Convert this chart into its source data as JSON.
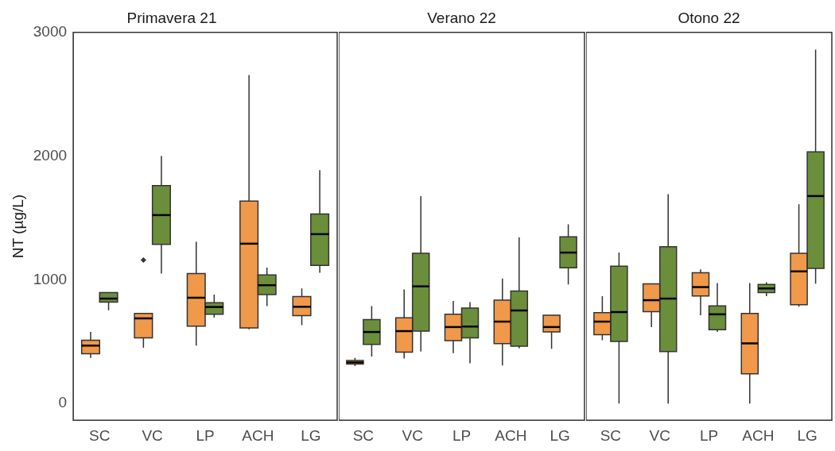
{
  "chart_data": [
    {
      "type": "box",
      "title": "Primavera 21",
      "ylabel": "NT (µg/L)",
      "categories": [
        "SC",
        "VC",
        "LP",
        "ACH",
        "LG"
      ],
      "ylim": [
        -135,
        3000
      ],
      "yticks": [
        0,
        1000,
        2000,
        3000
      ],
      "grid": false,
      "legend": false,
      "series": [
        {
          "color": "#f0994a",
          "boxes": [
            {
              "low": 369,
              "q1": 402,
              "median": 468,
              "q3": 512,
              "high": 578
            },
            {
              "low": 451,
              "q1": 530,
              "median": 688,
              "q3": 728,
              "high": 728,
              "outliers": [
                1160
              ]
            },
            {
              "low": 468,
              "q1": 626,
              "median": 855,
              "q3": 1051,
              "high": 1308
            },
            {
              "low": 600,
              "q1": 611,
              "median": 1292,
              "q3": 1637,
              "high": 2655
            },
            {
              "low": 633,
              "q1": 710,
              "median": 782,
              "q3": 864,
              "high": 930
            }
          ]
        },
        {
          "color": "#6b8e3a",
          "boxes": [
            {
              "low": 754,
              "q1": 820,
              "median": 848,
              "q3": 897,
              "high": 897
            },
            {
              "low": 1051,
              "q1": 1286,
              "median": 1523,
              "q3": 1761,
              "high": 2000
            },
            {
              "low": 695,
              "q1": 721,
              "median": 780,
              "q3": 815,
              "high": 881
            },
            {
              "low": 787,
              "q1": 881,
              "median": 956,
              "q3": 1040,
              "high": 1099
            },
            {
              "low": 1057,
              "q1": 1117,
              "median": 1369,
              "q3": 1532,
              "high": 1886
            }
          ]
        }
      ]
    },
    {
      "type": "box",
      "title": "Verano 22",
      "categories": [
        "SC",
        "VC",
        "LP",
        "ACH",
        "LG"
      ],
      "ylim": [
        -135,
        3000
      ],
      "yticks": [
        0,
        1000,
        2000,
        3000
      ],
      "tick_labels": "x",
      "grid": false,
      "legend": false,
      "series": [
        {
          "color": "#f0994a",
          "boxes": [
            {
              "low": 303,
              "q1": 319,
              "median": 332,
              "q3": 347,
              "high": 369
            },
            {
              "low": 363,
              "q1": 415,
              "median": 585,
              "q3": 692,
              "high": 923
            },
            {
              "low": 407,
              "q1": 508,
              "median": 618,
              "q3": 721,
              "high": 829
            },
            {
              "low": 308,
              "q1": 484,
              "median": 662,
              "q3": 835,
              "high": 1011
            },
            {
              "low": 442,
              "q1": 578,
              "median": 618,
              "q3": 714,
              "high": 714
            }
          ]
        },
        {
          "color": "#6b8e3a",
          "boxes": [
            {
              "low": 380,
              "q1": 477,
              "median": 578,
              "q3": 679,
              "high": 787
            },
            {
              "low": 420,
              "q1": 585,
              "median": 947,
              "q3": 1215,
              "high": 1677
            },
            {
              "low": 325,
              "q1": 530,
              "median": 622,
              "q3": 771,
              "high": 820
            },
            {
              "low": 446,
              "q1": 464,
              "median": 752,
              "q3": 910,
              "high": 1343
            },
            {
              "low": 963,
              "q1": 1097,
              "median": 1220,
              "q3": 1347,
              "high": 1448
            }
          ]
        }
      ]
    },
    {
      "type": "box",
      "title": "Otono 22",
      "categories": [
        "SC",
        "VC",
        "LP",
        "ACH",
        "LG"
      ],
      "ylim": [
        -135,
        3000
      ],
      "yticks": [
        0,
        1000,
        2000,
        3000
      ],
      "tick_labels": "x",
      "grid": false,
      "legend": false,
      "series": [
        {
          "color": "#f0994a",
          "boxes": [
            {
              "low": 512,
              "q1": 556,
              "median": 662,
              "q3": 734,
              "high": 868
            },
            {
              "low": 618,
              "q1": 743,
              "median": 835,
              "q3": 967,
              "high": 967
            },
            {
              "low": 714,
              "q1": 870,
              "median": 941,
              "q3": 1057,
              "high": 1084
            },
            {
              "low": 0,
              "q1": 240,
              "median": 486,
              "q3": 728,
              "high": 974
            },
            {
              "low": 782,
              "q1": 798,
              "median": 1068,
              "q3": 1215,
              "high": 1611
            }
          ]
        },
        {
          "color": "#6b8e3a",
          "boxes": [
            {
              "low": 0,
              "q1": 501,
              "median": 739,
              "q3": 1110,
              "high": 1220
            },
            {
              "low": 0,
              "q1": 420,
              "median": 848,
              "q3": 1268,
              "high": 1692
            },
            {
              "low": 578,
              "q1": 596,
              "median": 721,
              "q3": 789,
              "high": 974
            },
            {
              "low": 868,
              "q1": 897,
              "median": 930,
              "q3": 963,
              "high": 980
            },
            {
              "low": 969,
              "q1": 1092,
              "median": 1677,
              "q3": 2035,
              "high": 2860
            }
          ]
        }
      ]
    }
  ]
}
